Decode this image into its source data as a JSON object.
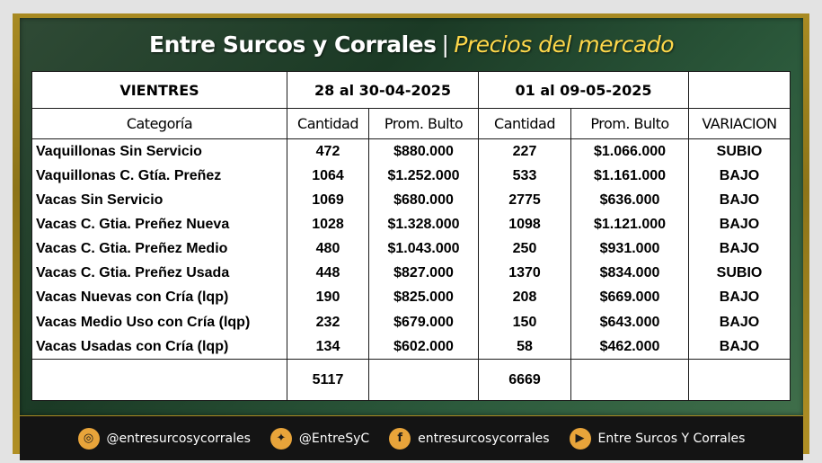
{
  "header": {
    "title": "Entre Surcos y Corrales",
    "separator": "|",
    "subtitle": "Precios del mercado"
  },
  "table": {
    "section_label": "VIENTRES",
    "period1": "28 al 30-04-2025",
    "period2": "01 al 09-05-2025",
    "columns": [
      "Categoría",
      "Cantidad",
      "Prom. Bulto",
      "Cantidad",
      "Prom. Bulto",
      "VARIACION"
    ],
    "rows": [
      {
        "categoria": "Vaquillonas Sin Servicio",
        "cant1": "472",
        "prom1": "$880.000",
        "cant2": "227",
        "prom2": "$1.066.000",
        "variacion": "SUBIO"
      },
      {
        "categoria": "Vaquillonas C. Gtía. Preñez",
        "cant1": "1064",
        "prom1": "$1.252.000",
        "cant2": "533",
        "prom2": "$1.161.000",
        "variacion": "BAJO"
      },
      {
        "categoria": "Vacas Sin Servicio",
        "cant1": "1069",
        "prom1": "$680.000",
        "cant2": "2775",
        "prom2": "$636.000",
        "variacion": "BAJO"
      },
      {
        "categoria": "Vacas C. Gtia. Preñez Nueva",
        "cant1": "1028",
        "prom1": "$1.328.000",
        "cant2": "1098",
        "prom2": "$1.121.000",
        "variacion": "BAJO"
      },
      {
        "categoria": "Vacas C. Gtia. Preñez Medio",
        "cant1": "480",
        "prom1": "$1.043.000",
        "cant2": "250",
        "prom2": "$931.000",
        "variacion": "BAJO"
      },
      {
        "categoria": "Vacas C. Gtia. Preñez Usada",
        "cant1": "448",
        "prom1": "$827.000",
        "cant2": "1370",
        "prom2": "$834.000",
        "variacion": "SUBIO"
      },
      {
        "categoria": "Vacas Nuevas con Cría (lqp)",
        "cant1": "190",
        "prom1": "$825.000",
        "cant2": "208",
        "prom2": "$669.000",
        "variacion": "BAJO"
      },
      {
        "categoria": "Vacas Medio Uso con Cría (lqp)",
        "cant1": "232",
        "prom1": "$679.000",
        "cant2": "150",
        "prom2": "$643.000",
        "variacion": "BAJO"
      },
      {
        "categoria": "Vacas Usadas con Cría (lqp)",
        "cant1": "134",
        "prom1": "$602.000",
        "cant2": "58",
        "prom2": "$462.000",
        "variacion": "BAJO"
      }
    ],
    "totals": {
      "cant1": "5117",
      "cant2": "6669"
    }
  },
  "footer": {
    "items": [
      {
        "icon": "instagram-icon",
        "glyph": "◎",
        "label": "@entresurcosycorrales"
      },
      {
        "icon": "twitter-icon",
        "glyph": "✦",
        "label": "@EntreSyC"
      },
      {
        "icon": "facebook-icon",
        "glyph": "f",
        "label": "entresurcosycorrales"
      },
      {
        "icon": "youtube-icon",
        "glyph": "▶",
        "label": "Entre Surcos Y Corrales"
      }
    ]
  },
  "colors": {
    "up": "#1e8a1e",
    "down": "#e0201c",
    "total": "#1b7a3e",
    "accent": "#ffd84a"
  }
}
